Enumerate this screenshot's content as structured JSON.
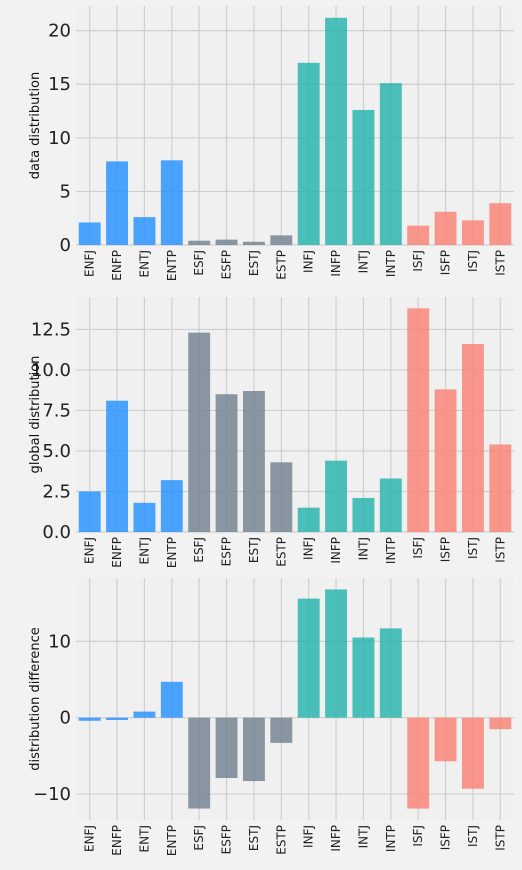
{
  "colors": {
    "figure_bg": "#f2f2f2",
    "axes_bg": "#f0f0f0",
    "grid": "#cfcfcf",
    "EN": "#1f8fff",
    "ES": "#6f7f8f",
    "IN": "#20b2aa",
    "IS": "#fa8072"
  },
  "chart_data": [
    {
      "type": "bar",
      "ylabel": "data distribution",
      "categories": [
        "ENFJ",
        "ENFP",
        "ENTJ",
        "ENTP",
        "ESFJ",
        "ESFP",
        "ESTJ",
        "ESTP",
        "INFJ",
        "INFP",
        "INTJ",
        "INTP",
        "ISFJ",
        "ISFP",
        "ISTJ",
        "ISTP"
      ],
      "values": [
        2.1,
        7.8,
        2.6,
        7.9,
        0.4,
        0.5,
        0.3,
        0.9,
        17.0,
        21.2,
        12.6,
        15.1,
        1.8,
        3.1,
        2.3,
        3.9
      ],
      "groups": [
        "EN",
        "EN",
        "EN",
        "EN",
        "ES",
        "ES",
        "ES",
        "ES",
        "IN",
        "IN",
        "IN",
        "IN",
        "IS",
        "IS",
        "IS",
        "IS"
      ],
      "ylim": [
        0,
        22.3
      ],
      "yticks": [
        0,
        5,
        10,
        15,
        20
      ],
      "ytick_labels": [
        "0",
        "5",
        "10",
        "15",
        "20"
      ],
      "grid": true
    },
    {
      "type": "bar",
      "ylabel": "global distribution",
      "categories": [
        "ENFJ",
        "ENFP",
        "ENTJ",
        "ENTP",
        "ESFJ",
        "ESFP",
        "ESTJ",
        "ESTP",
        "INFJ",
        "INFP",
        "INTJ",
        "INTP",
        "ISFJ",
        "ISFP",
        "ISTJ",
        "ISTP"
      ],
      "values": [
        2.5,
        8.1,
        1.8,
        3.2,
        12.3,
        8.5,
        8.7,
        4.3,
        1.5,
        4.4,
        2.1,
        3.3,
        13.8,
        8.8,
        11.6,
        5.4
      ],
      "groups": [
        "EN",
        "EN",
        "EN",
        "EN",
        "ES",
        "ES",
        "ES",
        "ES",
        "IN",
        "IN",
        "IN",
        "IN",
        "IS",
        "IS",
        "IS",
        "IS"
      ],
      "ylim": [
        0,
        14.5
      ],
      "yticks": [
        0,
        2.5,
        5,
        7.5,
        10,
        12.5
      ],
      "ytick_labels": [
        "0.0",
        "2.5",
        "5.0",
        "7.5",
        "10.0",
        "12.5"
      ],
      "grid": true
    },
    {
      "type": "bar",
      "ylabel": "distribution difference",
      "categories": [
        "ENFJ",
        "ENFP",
        "ENTJ",
        "ENTP",
        "ESFJ",
        "ESFP",
        "ESTJ",
        "ESTP",
        "INFJ",
        "INFP",
        "INTJ",
        "INTP",
        "ISFJ",
        "ISFP",
        "ISTJ",
        "ISTP"
      ],
      "values": [
        -0.4,
        -0.3,
        0.8,
        4.7,
        -11.9,
        -7.9,
        -8.3,
        -3.3,
        15.6,
        16.8,
        10.5,
        11.7,
        -11.9,
        -5.7,
        -9.3,
        -1.5
      ],
      "groups": [
        "EN",
        "EN",
        "EN",
        "EN",
        "ES",
        "ES",
        "ES",
        "ES",
        "IN",
        "IN",
        "IN",
        "IN",
        "IS",
        "IS",
        "IS",
        "IS"
      ],
      "ylim": [
        -13.4,
        18.3
      ],
      "yticks": [
        -10,
        0,
        10
      ],
      "ytick_labels": [
        "−10",
        "0",
        "10"
      ],
      "grid": true
    }
  ]
}
